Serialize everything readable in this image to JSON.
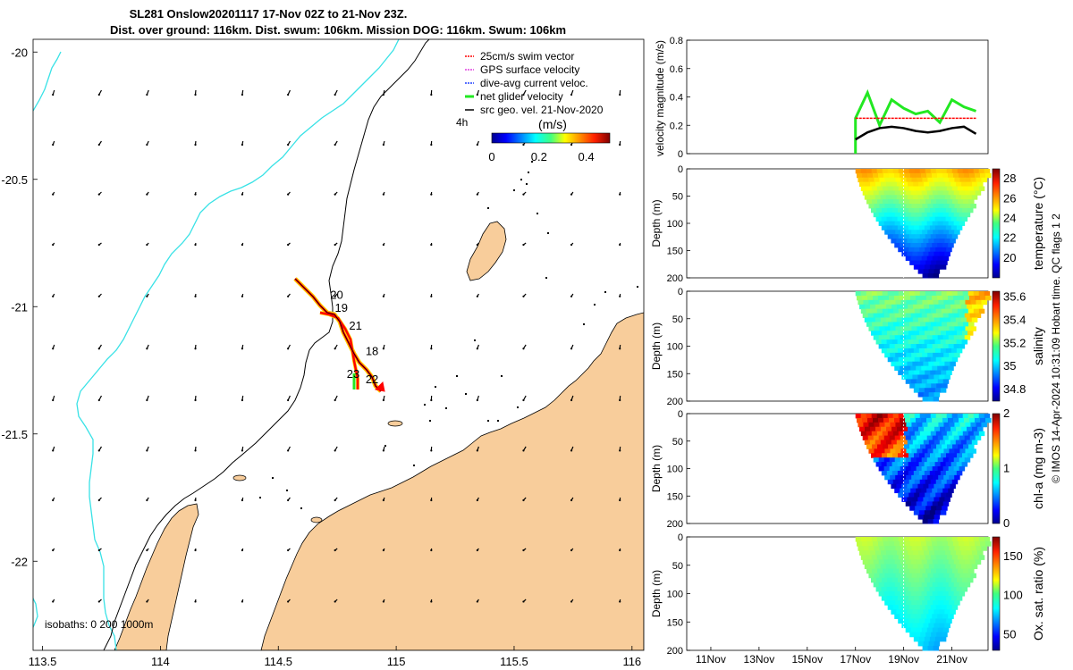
{
  "title": {
    "line1": "SL281 Onslow20201117 17-Nov 02Z to 21-Nov 23Z.",
    "line2": "Dist. over ground: 116km. Dist. swum: 106km. Mission DOG: 116km. Swum: 106km"
  },
  "colors": {
    "land": "#f8cd9b",
    "coast": "#000000",
    "iso1000": "#39e2e6",
    "isobath200": "#000000",
    "swim_vector": "#ff0000",
    "gps_surface": "#e040e0",
    "dive_avg": "#2040ff",
    "net_glider": "#22e822",
    "geo_vel": "#000000"
  },
  "map": {
    "lon_ticks": [
      "113.5",
      "114",
      "114.5",
      "115",
      "115.5",
      "116"
    ],
    "lat_ticks": [
      "-20",
      "-20.5",
      "-21",
      "-21.5",
      "-22"
    ],
    "lon_range": [
      113.46,
      116.05
    ],
    "lat_range": [
      -19.95,
      -22.35
    ],
    "legend": [
      {
        "key": "swim",
        "label": "25cm/s swim vector"
      },
      {
        "key": "gps",
        "label": "GPS surface velocity"
      },
      {
        "key": "dive",
        "label": "dive-avg current veloc."
      },
      {
        "key": "net",
        "label": "net glider velocity"
      },
      {
        "key": "geo",
        "label": "src geo. vel. 21-Nov-2020"
      }
    ],
    "scale_label": "4h",
    "colorbar_title": "(m/s)",
    "colorbar_ticks": [
      "0",
      "0.2",
      "0.4"
    ],
    "colorbar_range": [
      0,
      0.5
    ],
    "isobath_label": "isobaths: 0   200  1000m",
    "day_labels": [
      {
        "text": "20",
        "lon": 114.72,
        "lat": -20.97
      },
      {
        "text": "19",
        "lon": 114.74,
        "lat": -21.02
      },
      {
        "text": "21",
        "lon": 114.8,
        "lat": -21.09
      },
      {
        "text": "18",
        "lon": 114.87,
        "lat": -21.19
      },
      {
        "text": "23",
        "lon": 114.79,
        "lat": -21.28
      },
      {
        "text": "22",
        "lon": 114.87,
        "lat": -21.3
      }
    ]
  },
  "chart_data": [
    {
      "type": "line",
      "panel": "velocity",
      "ylabel": "velocity magnitude (m/s)",
      "ylim": [
        0,
        0.8
      ],
      "yticks": [
        "0",
        "0.2",
        "0.4",
        "0.6",
        "0.8"
      ],
      "series": [
        {
          "x": [
            "17Nov",
            "17.5Nov",
            "18Nov",
            "18.5Nov",
            "19Nov",
            "19.5Nov",
            "20Nov",
            "20.5Nov",
            "21Nov",
            "21.5Nov",
            "22Nov"
          ],
          "values": [
            0.25,
            0.43,
            0.2,
            0.38,
            0.32,
            0.28,
            0.3,
            0.22,
            0.38,
            0.33,
            0.3
          ]
        },
        {
          "x": [
            "17Nov",
            "22Nov"
          ],
          "values": [
            0.25,
            0.25
          ]
        },
        {
          "x": [
            "17Nov",
            "17.5Nov",
            "18Nov",
            "18.5Nov",
            "19Nov",
            "19.5Nov",
            "20Nov",
            "20.5Nov",
            "21Nov",
            "21.5Nov",
            "22Nov"
          ],
          "values": [
            0.1,
            0.15,
            0.18,
            0.19,
            0.18,
            0.16,
            0.15,
            0.16,
            0.18,
            0.19,
            0.14
          ]
        }
      ]
    },
    {
      "type": "heatmap",
      "panel": "temperature",
      "ylabel": "Depth (m)",
      "yticks": [
        "0",
        "50",
        "100",
        "150",
        "200"
      ],
      "cbar_label": "temperature (°C)",
      "cbar_ticks": [
        "28",
        "26",
        "24",
        "22",
        "20"
      ],
      "cbar_range": [
        18,
        29
      ]
    },
    {
      "type": "heatmap",
      "panel": "salinity",
      "ylabel": "Depth (m)",
      "yticks": [
        "0",
        "50",
        "100",
        "150",
        "200"
      ],
      "cbar_label": "salinity",
      "cbar_ticks": [
        "35.6",
        "35.4",
        "35.2",
        "35",
        "34.8"
      ],
      "cbar_range": [
        34.7,
        35.65
      ]
    },
    {
      "type": "heatmap",
      "panel": "chl-a",
      "ylabel": "Depth (m)",
      "yticks": [
        "0",
        "50",
        "100",
        "150",
        "200"
      ],
      "cbar_label": "chl-a (mg m-3)",
      "cbar_ticks": [
        "2",
        "1",
        "0"
      ],
      "cbar_range": [
        0,
        2
      ]
    },
    {
      "type": "heatmap",
      "panel": "oxygen",
      "ylabel": "Depth (m)",
      "yticks": [
        "0",
        "50",
        "100",
        "150",
        "200"
      ],
      "cbar_label": "Ox. sat. ratio (%)",
      "cbar_ticks": [
        "150",
        "100",
        "50"
      ],
      "cbar_range": [
        30,
        175
      ]
    }
  ],
  "time_axis": {
    "ticks": [
      "11Nov",
      "13Nov",
      "15Nov",
      "17Nov",
      "19Nov",
      "21Nov"
    ]
  },
  "footer_note": "© IMOS 14-Apr-2024 10:31:09 Hobart time. QC flags 1  2"
}
